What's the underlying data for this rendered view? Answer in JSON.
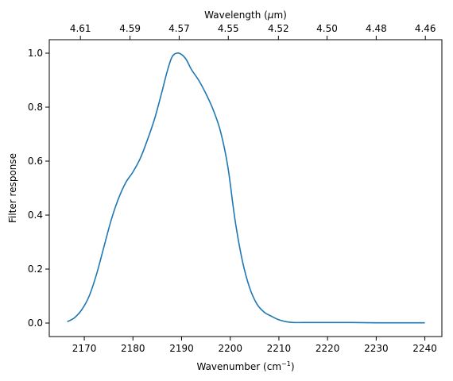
{
  "chart_data": {
    "type": "line",
    "title": "",
    "xlabel": "Wavenumber (cm",
    "xlabel_sup": "−1",
    "xlabel_end": ")",
    "ylabel": "Filter response",
    "top_xlabel": "Wavelength (",
    "top_xlabel_mu": "μ",
    "top_xlabel_end": "m)",
    "xlim": [
      2162.8,
      2243.5
    ],
    "ylim": [
      -0.05,
      1.05
    ],
    "x_ticks": [
      2170,
      2180,
      2190,
      2200,
      2210,
      2220,
      2230,
      2240
    ],
    "y_ticks": [
      0.0,
      0.2,
      0.4,
      0.6,
      0.8,
      1.0
    ],
    "top_ticks": [
      {
        "label": "4.61",
        "wavenumber": 2169.2
      },
      {
        "label": "4.59",
        "wavenumber": 2179.4
      },
      {
        "label": "4.57",
        "wavenumber": 2189.5
      },
      {
        "label": "4.55",
        "wavenumber": 2199.6
      },
      {
        "label": "4.52",
        "wavenumber": 2209.9
      },
      {
        "label": "4.50",
        "wavenumber": 2219.9
      },
      {
        "label": "4.48",
        "wavenumber": 2230.0
      },
      {
        "label": "4.46",
        "wavenumber": 2240.1
      }
    ],
    "line_color": "#1f77b4",
    "grid": false,
    "series": [
      {
        "x": [
          2166.5,
          2168,
          2169.5,
          2171,
          2172.5,
          2174,
          2175.5,
          2177,
          2178.5,
          2180,
          2181.5,
          2183,
          2184.5,
          2186,
          2187,
          2188,
          2189,
          2190,
          2191,
          2192,
          2193.5,
          2195,
          2196.5,
          2198,
          2199.5,
          2201,
          2202.5,
          2204,
          2205.5,
          2207,
          2208.5,
          2210,
          2211.5,
          2213,
          2215,
          2220,
          2225,
          2230,
          2235,
          2240
        ],
        "y": [
          0.005,
          0.02,
          0.05,
          0.1,
          0.18,
          0.28,
          0.38,
          0.46,
          0.52,
          0.56,
          0.61,
          0.68,
          0.76,
          0.86,
          0.93,
          0.985,
          1.0,
          0.995,
          0.975,
          0.94,
          0.9,
          0.85,
          0.79,
          0.71,
          0.58,
          0.38,
          0.23,
          0.13,
          0.07,
          0.04,
          0.025,
          0.012,
          0.005,
          0.002,
          0.002,
          0.002,
          0.002,
          0.001,
          0.001,
          0.001
        ]
      }
    ]
  }
}
